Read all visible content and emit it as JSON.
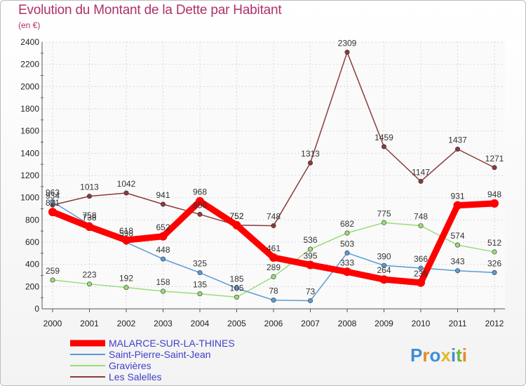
{
  "chart_data": {
    "type": "line",
    "title": "Evolution du Montant de la Dette par Habitant",
    "unit_label": "(en €)",
    "xlabel": "",
    "ylabel": "",
    "ylim": [
      0,
      2400
    ],
    "yticks": [
      0,
      200,
      400,
      600,
      800,
      1000,
      1200,
      1400,
      1600,
      1800,
      2000,
      2200,
      2400
    ],
    "categories": [
      "2000",
      "2001",
      "2002",
      "2003",
      "2004",
      "2005",
      "2006",
      "2007",
      "2008",
      "2009",
      "2010",
      "2011",
      "2012"
    ],
    "grid": true,
    "legend_position": "bottom-left",
    "series": [
      {
        "name": "MALARCE-SUR-LA-THINES",
        "color": "#ff0000",
        "values": [
          871,
          738,
          618,
          652,
          968,
          752,
          461,
          395,
          333,
          264,
          235,
          931,
          948
        ]
      },
      {
        "name": "Saint-Pierre-Saint-Jean",
        "color": "#5a9bd4",
        "values": [
          963,
          758,
          598,
          448,
          325,
          185,
          78,
          73,
          503,
          390,
          366,
          343,
          326
        ]
      },
      {
        "name": "Gravières",
        "color": "#99dd77",
        "values": [
          259,
          223,
          192,
          158,
          135,
          105,
          289,
          536,
          682,
          775,
          748,
          574,
          512
        ]
      },
      {
        "name": "Les Salelles",
        "color": "#8b3a3a",
        "values": [
          934,
          1013,
          1042,
          941,
          850,
          752,
          748,
          1313,
          2309,
          1459,
          1147,
          1437,
          1271
        ]
      }
    ]
  },
  "logo_text": "Proxiti"
}
